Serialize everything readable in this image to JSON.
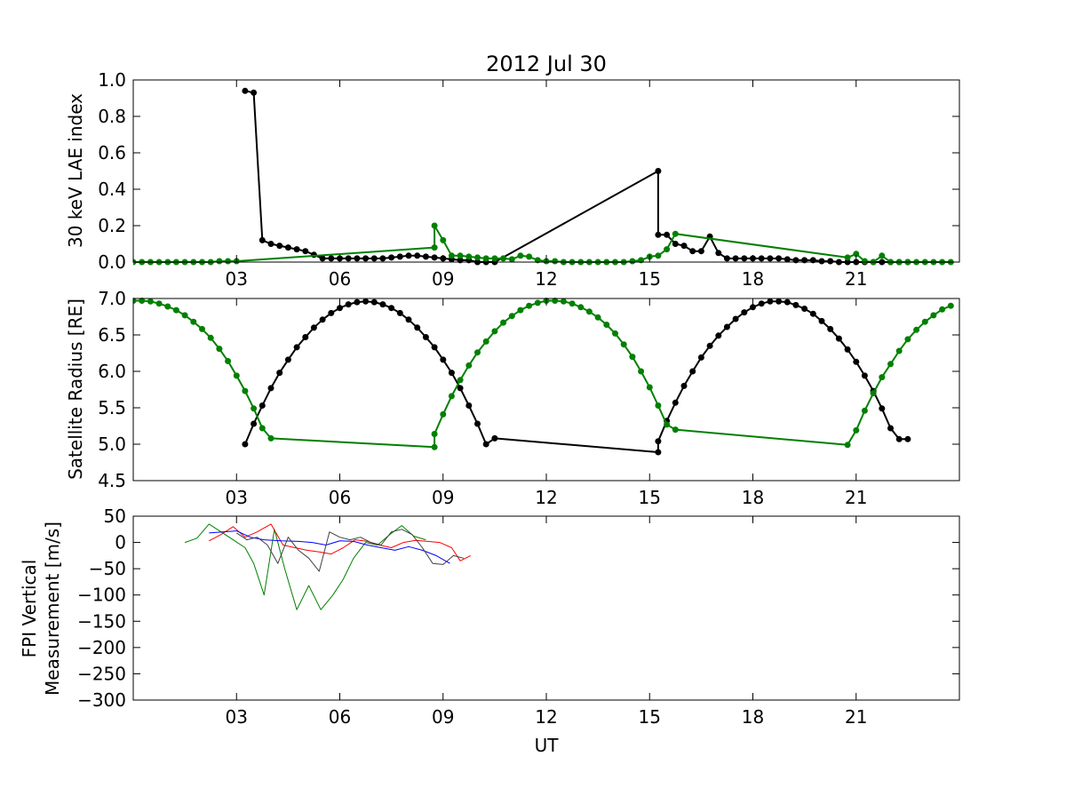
{
  "chart_data": [
    {
      "type": "line",
      "title": "2012 Jul 30",
      "ylabel": "30 keV LAE index",
      "xlabel": "",
      "xlim": [
        0,
        24
      ],
      "ylim": [
        0,
        1.0
      ],
      "xticks": [
        3,
        6,
        9,
        12,
        15,
        18,
        21
      ],
      "xtick_labels": [
        "03",
        "06",
        "09",
        "12",
        "15",
        "18",
        "21"
      ],
      "yticks": [
        0,
        0.2,
        0.4,
        0.6,
        0.8,
        1.0
      ],
      "ytick_labels": [
        "0.0",
        "0.2",
        "0.4",
        "0.6",
        "0.8",
        "1.0"
      ],
      "grid": false,
      "series": [
        {
          "color": "#000000",
          "marker": "dot",
          "x": [
            3.25,
            3.5,
            3.75,
            4.0,
            4.25,
            4.5,
            4.75,
            5.0,
            5.25,
            5.5,
            5.75,
            6.0,
            6.25,
            6.5,
            6.75,
            7.0,
            7.25,
            7.5,
            7.75,
            8.0,
            8.25,
            8.5,
            8.75,
            9.0,
            9.25,
            9.5,
            9.75,
            10.0,
            10.25,
            10.5,
            15.25,
            15.25,
            15.5,
            15.75,
            16.0,
            16.25,
            16.5,
            16.75,
            17.0,
            17.25,
            17.5,
            17.75,
            18.0,
            18.25,
            18.5,
            18.75,
            19.0,
            19.25,
            19.5,
            19.75,
            20.0,
            20.25,
            20.5,
            20.75,
            21.0,
            21.25,
            21.5,
            21.75,
            22.0,
            22.25,
            22.5
          ],
          "y": [
            0.94,
            0.93,
            0.12,
            0.1,
            0.09,
            0.08,
            0.07,
            0.06,
            0.04,
            0.02,
            0.02,
            0.02,
            0.02,
            0.02,
            0.02,
            0.02,
            0.02,
            0.025,
            0.03,
            0.035,
            0.035,
            0.03,
            0.025,
            0.02,
            0.015,
            0.01,
            0.01,
            0.0,
            0.0,
            0.0,
            0.5,
            0.15,
            0.15,
            0.1,
            0.09,
            0.06,
            0.06,
            0.14,
            0.05,
            0.02,
            0.02,
            0.02,
            0.02,
            0.02,
            0.02,
            0.02,
            0.015,
            0.01,
            0.01,
            0.01,
            0.005,
            0.005,
            0.0,
            0.0,
            0.0,
            0.0,
            0.0,
            0.0,
            0.0,
            0.0,
            0.0
          ]
        },
        {
          "color": "#008000",
          "marker": "dot",
          "x": [
            0.0,
            0.25,
            0.5,
            0.75,
            1.0,
            1.25,
            1.5,
            1.75,
            2.0,
            2.25,
            2.5,
            2.75,
            3.0,
            8.75,
            8.75,
            9.0,
            9.25,
            9.5,
            9.75,
            10.0,
            10.25,
            10.5,
            10.75,
            11.0,
            11.25,
            11.5,
            11.75,
            12.0,
            12.25,
            12.5,
            12.75,
            13.0,
            13.25,
            13.5,
            13.75,
            14.0,
            14.25,
            14.5,
            14.75,
            15.0,
            15.25,
            15.5,
            15.75,
            20.75,
            21.0,
            21.25,
            21.5,
            21.75,
            22.0,
            22.25,
            22.5,
            22.75,
            23.0,
            23.25,
            23.5,
            23.75
          ],
          "y": [
            0.0,
            0.0,
            0.0,
            0.0,
            0.0,
            0.0,
            0.0,
            0.0,
            0.0,
            0.0,
            0.005,
            0.005,
            0.005,
            0.08,
            0.2,
            0.12,
            0.035,
            0.035,
            0.03,
            0.025,
            0.02,
            0.02,
            0.02,
            0.015,
            0.035,
            0.03,
            0.01,
            0.005,
            0.005,
            0.0,
            0.0,
            0.0,
            0.0,
            0.0,
            0.0,
            0.0,
            0.0,
            0.005,
            0.01,
            0.03,
            0.035,
            0.07,
            0.155,
            0.025,
            0.045,
            0.005,
            0.0,
            0.035,
            0.0,
            0.0,
            0.0,
            0.0,
            0.0,
            0.0,
            0.0,
            0.0
          ]
        }
      ]
    },
    {
      "type": "line",
      "ylabel": "Satellite Radius [RE]",
      "xlabel": "",
      "xlim": [
        0,
        24
      ],
      "ylim": [
        4.5,
        7.0
      ],
      "xticks": [
        3,
        6,
        9,
        12,
        15,
        18,
        21
      ],
      "xtick_labels": [
        "03",
        "06",
        "09",
        "12",
        "15",
        "18",
        "21"
      ],
      "yticks": [
        4.5,
        5.0,
        5.5,
        6.0,
        6.5,
        7.0
      ],
      "ytick_labels": [
        "4.5",
        "5.0",
        "5.5",
        "6.0",
        "6.5",
        "7.0"
      ],
      "grid": false,
      "series": [
        {
          "color": "#000000",
          "marker": "dot",
          "x": [
            3.25,
            3.5,
            3.75,
            4.0,
            4.25,
            4.5,
            4.75,
            5.0,
            5.25,
            5.5,
            5.75,
            6.0,
            6.25,
            6.5,
            6.75,
            7.0,
            7.25,
            7.5,
            7.75,
            8.0,
            8.25,
            8.5,
            8.75,
            9.0,
            9.25,
            9.5,
            9.75,
            10.0,
            10.25,
            10.5,
            15.25,
            15.25,
            15.5,
            15.75,
            16.0,
            16.25,
            16.5,
            16.75,
            17.0,
            17.25,
            17.5,
            17.75,
            18.0,
            18.25,
            18.5,
            18.75,
            19.0,
            19.25,
            19.5,
            19.75,
            20.0,
            20.25,
            20.5,
            20.75,
            21.0,
            21.25,
            21.5,
            21.75,
            22.0,
            22.25,
            22.5
          ],
          "y": [
            5.0,
            5.28,
            5.53,
            5.77,
            5.98,
            6.16,
            6.33,
            6.47,
            6.6,
            6.71,
            6.8,
            6.87,
            6.92,
            6.95,
            6.96,
            6.95,
            6.92,
            6.87,
            6.8,
            6.71,
            6.6,
            6.47,
            6.33,
            6.16,
            5.98,
            5.77,
            5.53,
            5.28,
            5.0,
            5.08,
            4.89,
            5.04,
            5.32,
            5.57,
            5.8,
            6.0,
            6.19,
            6.35,
            6.49,
            6.61,
            6.72,
            6.81,
            6.88,
            6.93,
            6.96,
            6.96,
            6.95,
            6.91,
            6.86,
            6.79,
            6.69,
            6.58,
            6.45,
            6.3,
            6.13,
            5.94,
            5.73,
            5.49,
            5.22,
            5.07,
            5.07
          ]
        },
        {
          "color": "#008000",
          "marker": "dot",
          "x": [
            0.0,
            0.25,
            0.5,
            0.75,
            1.0,
            1.25,
            1.5,
            1.75,
            2.0,
            2.25,
            2.5,
            2.75,
            3.0,
            3.25,
            3.5,
            3.75,
            4.0,
            8.75,
            8.75,
            9.0,
            9.25,
            9.5,
            9.75,
            10.0,
            10.25,
            10.5,
            10.75,
            11.0,
            11.25,
            11.5,
            11.75,
            12.0,
            12.25,
            12.5,
            12.75,
            13.0,
            13.25,
            13.5,
            13.75,
            14.0,
            14.25,
            14.5,
            14.75,
            15.0,
            15.25,
            15.5,
            15.75,
            20.75,
            21.0,
            21.25,
            21.5,
            21.75,
            22.0,
            22.25,
            22.5,
            22.75,
            23.0,
            23.25,
            23.5,
            23.75
          ],
          "y": [
            6.97,
            6.97,
            6.96,
            6.93,
            6.89,
            6.84,
            6.77,
            6.68,
            6.58,
            6.46,
            6.31,
            6.14,
            5.94,
            5.73,
            5.49,
            5.22,
            5.08,
            4.96,
            5.14,
            5.41,
            5.66,
            5.88,
            6.08,
            6.26,
            6.41,
            6.55,
            6.67,
            6.76,
            6.84,
            6.9,
            6.94,
            6.97,
            6.97,
            6.96,
            6.93,
            6.88,
            6.82,
            6.74,
            6.64,
            6.52,
            6.37,
            6.2,
            6.0,
            5.78,
            5.53,
            5.27,
            5.2,
            4.99,
            5.19,
            5.46,
            5.7,
            5.92,
            6.1,
            6.28,
            6.44,
            6.57,
            6.68,
            6.77,
            6.85,
            6.9
          ]
        }
      ]
    },
    {
      "type": "line",
      "ylabel": "FPI Vertical Measurement [m/s]",
      "ylabel_lines": [
        "FPI Vertical",
        "Measurement [m/s]"
      ],
      "xlabel": "UT",
      "xlim": [
        0,
        24
      ],
      "ylim": [
        -300,
        50
      ],
      "xticks": [
        3,
        6,
        9,
        12,
        15,
        18,
        21
      ],
      "xtick_labels": [
        "03",
        "06",
        "09",
        "12",
        "15",
        "18",
        "21"
      ],
      "yticks": [
        -300,
        -250,
        -200,
        -150,
        -100,
        -50,
        0,
        50
      ],
      "ytick_labels": [
        "−300",
        "−250",
        "−200",
        "−150",
        "−100",
        "−50",
        "0",
        "50"
      ],
      "grid": false,
      "series": [
        {
          "color": "#008000",
          "x": [
            1.5,
            1.85,
            2.2,
            2.55,
            2.9,
            3.25,
            3.5,
            3.8,
            4.1,
            4.4,
            4.75,
            5.1,
            5.45,
            5.8,
            6.1,
            6.4,
            6.75,
            7.1,
            7.45,
            7.8,
            8.15,
            8.5
          ],
          "y": [
            0,
            8,
            35,
            20,
            5,
            -10,
            -40,
            -100,
            25,
            -50,
            -128,
            -82,
            -128,
            -100,
            -70,
            -30,
            0,
            -5,
            15,
            32,
            12,
            5
          ]
        },
        {
          "color": "#ff0000",
          "x": [
            2.2,
            2.55,
            2.9,
            3.25,
            3.6,
            4.0,
            4.35,
            4.7,
            5.05,
            5.4,
            5.75,
            6.1,
            6.45,
            6.8,
            7.15,
            7.5,
            7.85,
            8.2,
            8.55,
            8.9,
            9.25,
            9.5,
            9.8
          ],
          "y": [
            3,
            15,
            30,
            10,
            20,
            35,
            -5,
            -10,
            -15,
            -18,
            -22,
            -10,
            5,
            2,
            -5,
            -10,
            0,
            4,
            2,
            0,
            -10,
            -35,
            -25
          ]
        },
        {
          "color": "#0000ff",
          "x": [
            2.2,
            2.6,
            3.0,
            3.4,
            3.8,
            4.3,
            4.8,
            5.2,
            5.6,
            6.0,
            6.4,
            6.8,
            7.2,
            7.6,
            8.0,
            8.4,
            8.8,
            9.2
          ],
          "y": [
            18,
            20,
            22,
            10,
            5,
            3,
            2,
            0,
            -5,
            3,
            2,
            -5,
            -10,
            -15,
            -8,
            -15,
            -25,
            -40
          ]
        },
        {
          "color": "#404040",
          "x": [
            3.0,
            3.3,
            3.6,
            3.9,
            4.2,
            4.5,
            4.8,
            5.1,
            5.4,
            5.7,
            6.0,
            6.3,
            6.6,
            6.9,
            7.2,
            7.5,
            7.8,
            8.1,
            8.4,
            8.7,
            9.0,
            9.3,
            9.6
          ],
          "y": [
            18,
            5,
            10,
            -5,
            -40,
            10,
            -15,
            -30,
            -55,
            20,
            10,
            5,
            10,
            0,
            -5,
            20,
            25,
            15,
            -10,
            -40,
            -42,
            -25,
            -30
          ]
        }
      ]
    }
  ]
}
